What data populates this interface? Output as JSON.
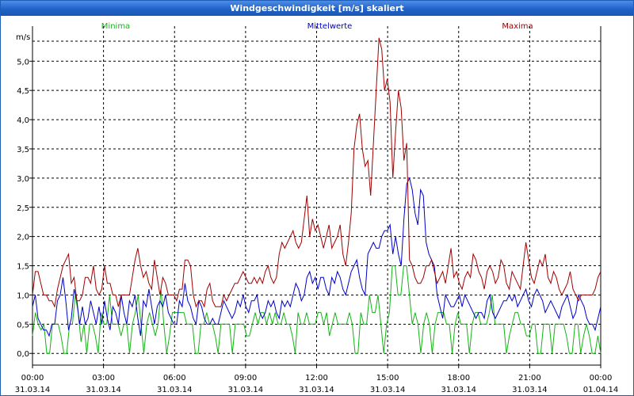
{
  "window": {
    "title": "Windgeschwindigkeit [m/s] skaliert"
  },
  "colors": {
    "minima": "#14b414",
    "mittel": "#0000c8",
    "maxima": "#a00000",
    "axis": "#000000",
    "titlebar": "#1f62c9"
  },
  "chart_data": {
    "type": "line",
    "title": "Windgeschwindigkeit [m/s] skaliert",
    "ylabel": "m/s",
    "xlabel": "",
    "ylim": [
      -0.2,
      5.6
    ],
    "yticks": [
      0.0,
      0.5,
      1.0,
      1.5,
      2.0,
      2.5,
      3.0,
      3.5,
      4.0,
      4.5,
      5.0
    ],
    "ytick_labels": [
      "0,0",
      "0,5",
      "1,0",
      "1,5",
      "2,0",
      "2,5",
      "3,0",
      "3,5",
      "4,0",
      "4,5",
      "5,0"
    ],
    "x_unit": "hours since 31.03.14 00:00",
    "xlim": [
      0,
      24
    ],
    "xticks": [
      0,
      3,
      6,
      9,
      12,
      15,
      18,
      21,
      24
    ],
    "xtick_time": [
      "00:00",
      "03:00",
      "06:00",
      "09:00",
      "12:00",
      "15:00",
      "18:00",
      "21:00",
      "00:00"
    ],
    "xtick_date": [
      "31.03.14",
      "31.03.14",
      "31.03.14",
      "31.03.14",
      "31.03.14",
      "31.03.14",
      "31.03.14",
      "31.03.14",
      "01.04.14"
    ],
    "grid": true,
    "legend_position": "top",
    "series": [
      {
        "name": "Minima",
        "color": "#14b414",
        "values": [
          0.3,
          0.7,
          0.5,
          0.4,
          0.5,
          0.0,
          0.0,
          0.5,
          0.5,
          0.5,
          0.3,
          0.0,
          0.0,
          0.5,
          0.5,
          1.0,
          0.7,
          0.2,
          0.5,
          0.0,
          0.5,
          0.5,
          0.3,
          0.0,
          0.7,
          0.5,
          0.5,
          1.0,
          0.5,
          0.5,
          0.5,
          0.3,
          0.5,
          0.5,
          0.0,
          0.5,
          0.7,
          1.0,
          0.5,
          0.0,
          0.5,
          0.7,
          0.5,
          0.3,
          0.5,
          1.1,
          0.5,
          0.0,
          0.3,
          0.7,
          0.7,
          0.7,
          0.7,
          0.7,
          0.5,
          0.5,
          0.5,
          0.0,
          0.0,
          0.5,
          0.5,
          0.7,
          0.5,
          0.5,
          0.3,
          0.0,
          0.5,
          0.5,
          0.5,
          0.5,
          0.0,
          0.5,
          0.5,
          0.5,
          0.5,
          0.3,
          0.3,
          0.5,
          0.7,
          0.5,
          0.7,
          0.7,
          0.5,
          0.7,
          0.5,
          0.7,
          0.5,
          0.5,
          0.7,
          0.5,
          0.5,
          0.3,
          0.0,
          0.7,
          0.5,
          0.5,
          0.7,
          0.5,
          0.5,
          0.5,
          0.7,
          0.7,
          0.5,
          0.7,
          0.3,
          0.5,
          0.7,
          0.5,
          0.5,
          0.5,
          0.5,
          0.7,
          0.5,
          0.0,
          0.0,
          0.7,
          0.5,
          0.5,
          1.0,
          0.7,
          0.7,
          1.0,
          0.5,
          0.0,
          0.5,
          0.7,
          1.5,
          1.5,
          1.0,
          1.0,
          1.5,
          1.5,
          1.0,
          0.5,
          0.7,
          0.5,
          0.0,
          0.5,
          0.7,
          0.5,
          0.0,
          0.5,
          0.7,
          0.7,
          0.7,
          0.5,
          0.5,
          0.0,
          0.5,
          0.7,
          0.5,
          0.5,
          0.5,
          0.0,
          0.5,
          0.7,
          0.7,
          0.5,
          0.5,
          0.5,
          0.7,
          1.0,
          0.5,
          0.5,
          0.5,
          0.5,
          0.0,
          0.3,
          0.5,
          0.7,
          0.7,
          0.5,
          0.5,
          0.3,
          0.3,
          0.5,
          0.5,
          0.0,
          0.0,
          0.5,
          0.5,
          0.5,
          0.0,
          0.5,
          0.5,
          0.5,
          0.5,
          0.3,
          0.0,
          0.0,
          0.5,
          0.5,
          0.0,
          0.3,
          0.5,
          0.3,
          0.0,
          0.0,
          0.3,
          0.0
        ]
      },
      {
        "name": "Mittelwerte",
        "color": "#0000c8",
        "values": [
          0.8,
          1.0,
          0.6,
          0.5,
          0.4,
          0.4,
          0.3,
          0.5,
          0.5,
          0.9,
          1.0,
          1.3,
          0.9,
          0.4,
          0.6,
          1.1,
          0.9,
          0.5,
          0.8,
          0.5,
          0.6,
          0.9,
          0.7,
          0.5,
          0.8,
          0.5,
          0.9,
          0.6,
          0.4,
          0.8,
          0.7,
          0.5,
          1.0,
          0.7,
          0.5,
          0.9,
          0.8,
          1.0,
          0.6,
          0.3,
          0.9,
          0.8,
          1.1,
          0.8,
          0.5,
          0.8,
          0.9,
          0.8,
          1.0,
          0.7,
          0.6,
          0.5,
          0.5,
          0.9,
          0.8,
          1.2,
          0.9,
          0.8,
          0.6,
          0.5,
          0.9,
          0.8,
          0.6,
          0.5,
          0.5,
          0.6,
          0.5,
          0.5,
          0.7,
          0.9,
          0.8,
          0.7,
          0.6,
          0.7,
          0.9,
          0.8,
          1.0,
          0.8,
          0.7,
          0.9,
          0.9,
          1.0,
          0.7,
          0.6,
          0.7,
          0.9,
          0.8,
          0.9,
          0.7,
          0.6,
          0.9,
          0.8,
          0.9,
          0.8,
          1.0,
          1.2,
          1.1,
          0.9,
          1.0,
          1.3,
          1.4,
          1.2,
          1.3,
          1.1,
          1.3,
          1.3,
          1.1,
          1.0,
          1.3,
          1.2,
          1.4,
          1.3,
          1.1,
          1.0,
          1.2,
          1.4,
          1.5,
          1.6,
          1.3,
          1.1,
          1.0,
          1.7,
          1.8,
          1.9,
          1.8,
          1.8,
          2.0,
          2.1,
          2.1,
          2.2,
          1.7,
          2.0,
          1.7,
          1.5,
          2.3,
          2.9,
          3.0,
          2.8,
          2.4,
          2.2,
          2.8,
          2.7,
          1.9,
          1.7,
          1.6,
          1.5,
          1.0,
          0.8,
          0.6,
          1.0,
          0.9,
          0.8,
          0.8,
          0.9,
          1.0,
          0.8,
          1.0,
          0.9,
          0.8,
          0.7,
          0.6,
          0.7,
          0.7,
          0.6,
          0.9,
          1.0,
          0.7,
          0.6,
          0.7,
          0.8,
          0.9,
          0.9,
          1.0,
          0.9,
          1.0,
          0.8,
          0.9,
          1.0,
          1.1,
          0.9,
          0.8,
          1.0,
          1.1,
          1.0,
          0.9,
          0.7,
          0.8,
          0.9,
          0.8,
          0.7,
          0.6,
          0.8,
          0.9,
          1.0,
          0.8,
          0.6,
          0.7,
          1.0,
          0.9,
          0.8,
          0.6,
          0.5,
          0.5,
          0.4,
          0.6,
          0.8
        ]
      },
      {
        "name": "Maxima",
        "color": "#a00000",
        "values": [
          1.0,
          1.4,
          1.4,
          1.2,
          1.0,
          1.0,
          0.9,
          0.9,
          0.8,
          1.1,
          1.3,
          1.5,
          1.6,
          1.7,
          1.2,
          1.3,
          0.9,
          0.9,
          1.0,
          1.3,
          1.3,
          1.2,
          1.5,
          1.1,
          1.0,
          1.1,
          1.5,
          1.2,
          1.2,
          1.0,
          1.0,
          0.8,
          1.0,
          1.0,
          1.0,
          1.0,
          1.3,
          1.6,
          1.8,
          1.5,
          1.3,
          1.4,
          1.2,
          1.1,
          1.6,
          1.3,
          1.0,
          1.3,
          1.2,
          1.0,
          1.0,
          1.0,
          0.9,
          1.1,
          1.1,
          1.6,
          1.6,
          1.5,
          1.0,
          0.8,
          0.9,
          0.9,
          0.8,
          1.1,
          1.2,
          0.9,
          0.8,
          0.8,
          0.8,
          1.0,
          0.9,
          1.0,
          1.1,
          1.2,
          1.2,
          1.3,
          1.4,
          1.3,
          1.2,
          1.2,
          1.3,
          1.2,
          1.3,
          1.2,
          1.4,
          1.5,
          1.3,
          1.2,
          1.3,
          1.7,
          1.9,
          1.8,
          1.9,
          2.0,
          2.1,
          1.9,
          1.8,
          1.9,
          2.3,
          2.7,
          2.0,
          2.3,
          2.1,
          2.2,
          2.0,
          1.8,
          2.0,
          2.2,
          1.8,
          1.9,
          2.0,
          2.2,
          1.7,
          1.5,
          1.9,
          2.4,
          3.5,
          3.9,
          4.1,
          3.5,
          3.2,
          3.3,
          2.7,
          3.6,
          4.5,
          5.4,
          5.2,
          4.5,
          4.7,
          4.3,
          3.0,
          3.8,
          4.5,
          4.2,
          3.3,
          3.6,
          1.6,
          1.5,
          1.3,
          1.2,
          1.2,
          1.3,
          1.5,
          1.5,
          1.6,
          1.4,
          1.2,
          1.3,
          1.4,
          1.2,
          1.5,
          1.8,
          1.3,
          1.4,
          1.2,
          1.1,
          1.3,
          1.4,
          1.3,
          1.7,
          1.6,
          1.4,
          1.3,
          1.1,
          1.4,
          1.5,
          1.4,
          1.2,
          1.3,
          1.6,
          1.5,
          1.2,
          1.1,
          1.4,
          1.3,
          1.2,
          1.1,
          1.5,
          1.9,
          1.6,
          1.3,
          1.2,
          1.4,
          1.6,
          1.5,
          1.7,
          1.3,
          1.2,
          1.4,
          1.3,
          1.1,
          1.0,
          1.1,
          1.2,
          1.4,
          1.1,
          1.0,
          0.9,
          1.0,
          1.0,
          1.0,
          1.0,
          1.0,
          1.1,
          1.3,
          1.4
        ]
      }
    ]
  }
}
